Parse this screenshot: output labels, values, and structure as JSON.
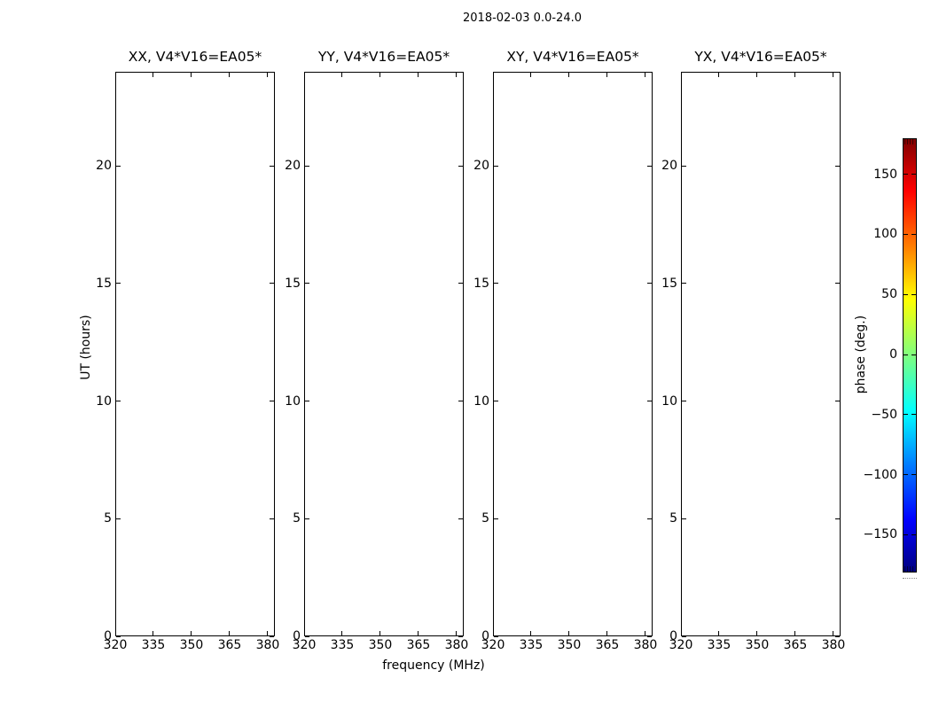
{
  "figure": {
    "title": "2018-02-03 0.0-24.0",
    "xlabel": "frequency (MHz)",
    "ylabel": "UT (hours)"
  },
  "subplots": [
    {
      "title": "XX, V4*V16=EA05*"
    },
    {
      "title": "YY, V4*V16=EA05*"
    },
    {
      "title": "XY, V4*V16=EA05*"
    },
    {
      "title": "YX, V4*V16=EA05*"
    }
  ],
  "axes": {
    "x_tick_labels": [
      "320",
      "335",
      "350",
      "365",
      "380"
    ],
    "y_tick_labels": [
      "0",
      "5",
      "10",
      "15",
      "20"
    ]
  },
  "colorbar": {
    "label": "phase (deg.)",
    "tick_labels": [
      "150",
      "100",
      "50",
      "0",
      "−50",
      "−100",
      "−150"
    ],
    "tick_values": [
      150,
      100,
      50,
      0,
      -50,
      -100,
      -150
    ],
    "range": [
      -180,
      180
    ],
    "colormap": "jet",
    "gradient_stops": [
      "#00007f 0%",
      "#0000ff 12%",
      "#007fff 25%",
      "#00ffff 37%",
      "#7fff7f 50%",
      "#ffff00 63%",
      "#ff7f00 75%",
      "#ff0000 88%",
      "#7f0000 100%"
    ],
    "outline_color": "#000000"
  },
  "chart_data": {
    "type": "heatmap",
    "suptitle": "2018-02-03 0.0-24.0",
    "panels": [
      {
        "title": "XX, V4*V16=EA05*",
        "values": []
      },
      {
        "title": "YY, V4*V16=EA05*",
        "values": []
      },
      {
        "title": "XY, V4*V16=EA05*",
        "values": []
      },
      {
        "title": "YX, V4*V16=EA05*",
        "values": []
      }
    ],
    "xlabel": "frequency (MHz)",
    "ylabel": "UT (hours)",
    "xlim": [
      320,
      382.8
    ],
    "ylim": [
      0,
      24
    ],
    "x_ticks": [
      320,
      335,
      350,
      365,
      380
    ],
    "y_ticks": [
      0,
      5,
      10,
      15,
      20
    ],
    "grid": false,
    "colorbar": {
      "label": "phase (deg.)",
      "ticks": [
        150,
        100,
        50,
        0,
        -50,
        -100,
        -150
      ],
      "range": [
        -180,
        180
      ],
      "colormap": "jet",
      "position": "right"
    }
  }
}
